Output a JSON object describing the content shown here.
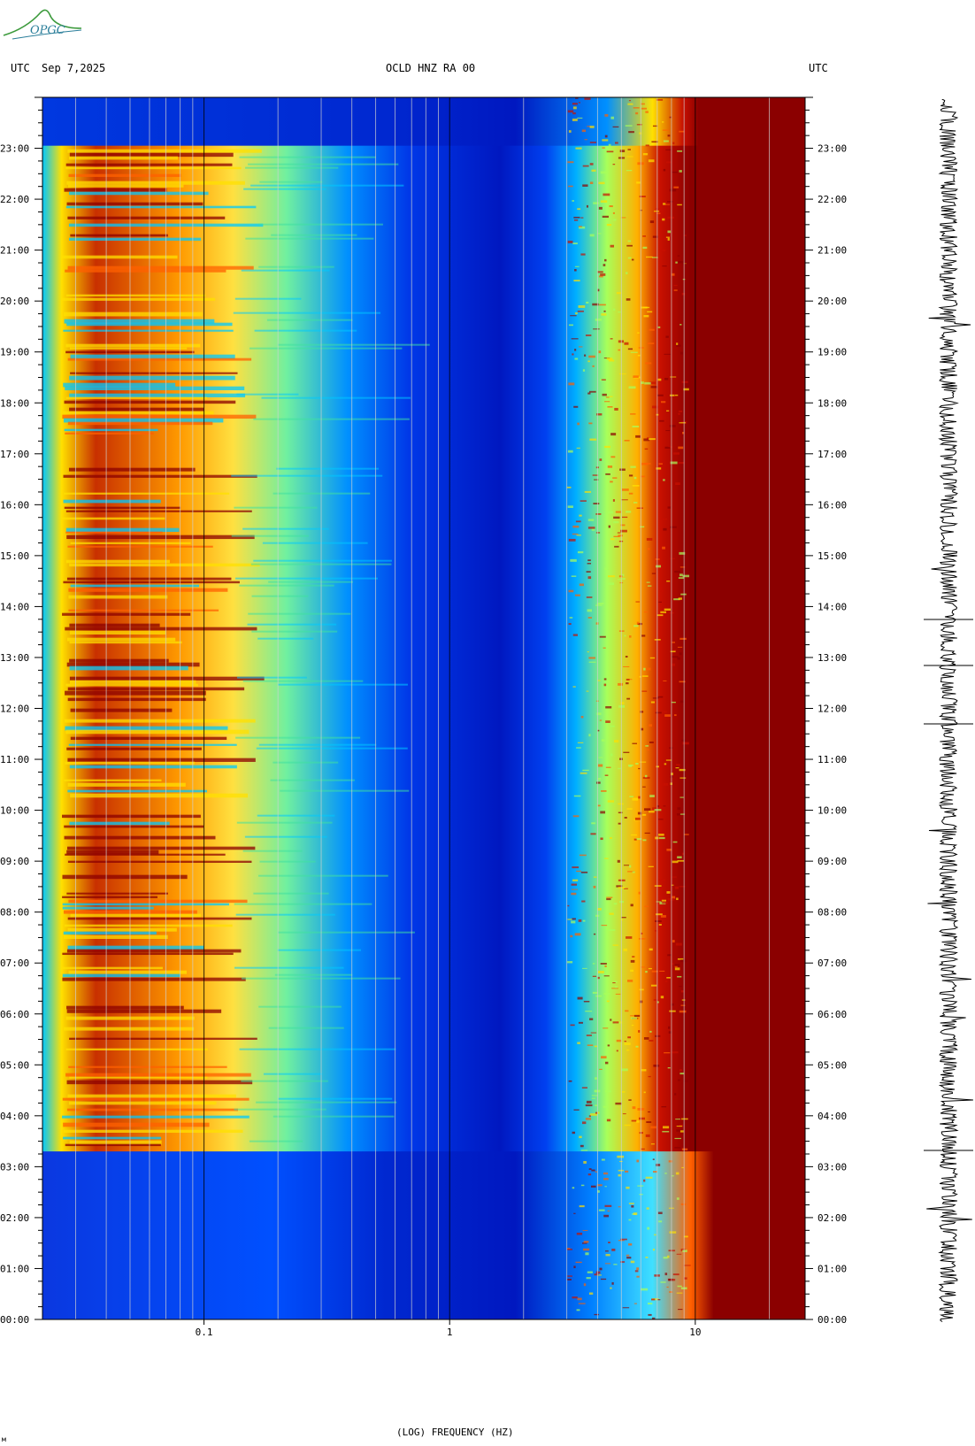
{
  "header": {
    "left_tz": "UTC",
    "date": "Sep 7,2025",
    "station": "OCLD HNZ RA 00",
    "right_tz": "UTC"
  },
  "logo": {
    "text": "OPGC",
    "name": "opgc-logo"
  },
  "chart_data": {
    "type": "heatmap",
    "title": "OCLD HNZ RA 00",
    "xlabel": "(LOG) FREQUENCY (HZ)",
    "x_scale": "log",
    "xlim": [
      0.022,
      28
    ],
    "x_ticks": [
      "0.1",
      "1",
      "10"
    ],
    "y_ticks": [
      "00:00",
      "01:00",
      "02:00",
      "03:00",
      "04:00",
      "05:00",
      "06:00",
      "07:00",
      "08:00",
      "09:00",
      "10:00",
      "11:00",
      "12:00",
      "13:00",
      "14:00",
      "15:00",
      "16:00",
      "17:00",
      "18:00",
      "19:00",
      "20:00",
      "21:00",
      "22:00",
      "23:00"
    ],
    "ylim_hours": [
      0,
      24
    ],
    "colormap": [
      "#0000b0",
      "#0050ff",
      "#00c8ff",
      "#a8ff5a",
      "#ffe000",
      "#ff6000",
      "#8b0000"
    ]
  },
  "corner_mark": "м"
}
